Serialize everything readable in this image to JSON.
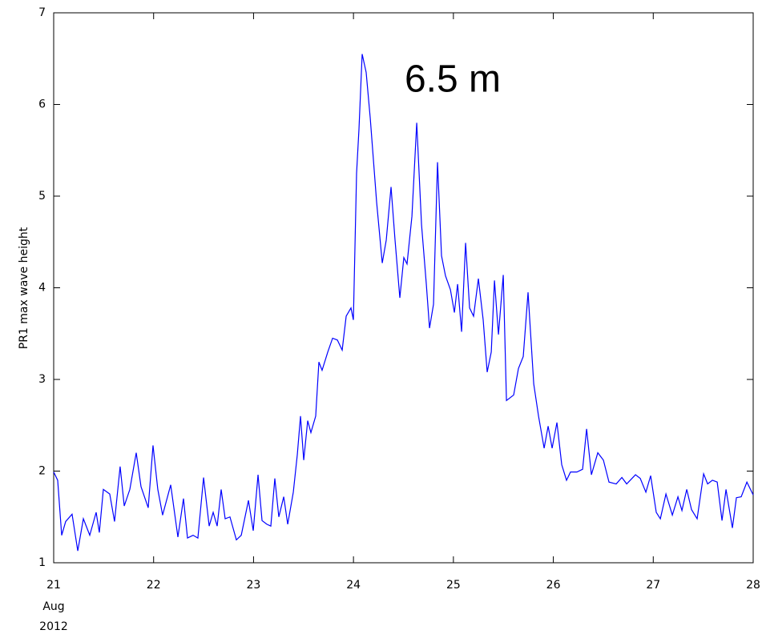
{
  "chart_data": {
    "type": "line",
    "ylabel": "PR1 max wave height",
    "annotation": "6.5 m",
    "x_date_label": [
      "Aug",
      "2012"
    ],
    "xlim": [
      21,
      28
    ],
    "ylim": [
      1,
      7
    ],
    "xticks": [
      21,
      22,
      23,
      24,
      25,
      26,
      27,
      28
    ],
    "yticks": [
      1,
      2,
      3,
      4,
      5,
      6,
      7
    ],
    "grid": false,
    "x": [
      21.0,
      21.04,
      21.08,
      21.12,
      21.184,
      21.241,
      21.297,
      21.361,
      21.425,
      21.457,
      21.497,
      21.561,
      21.609,
      21.665,
      21.706,
      21.762,
      21.826,
      21.874,
      21.946,
      21.994,
      22.042,
      22.09,
      22.171,
      22.243,
      22.299,
      22.339,
      22.395,
      22.443,
      22.5,
      22.556,
      22.596,
      22.636,
      22.676,
      22.716,
      22.764,
      22.828,
      22.877,
      22.949,
      22.997,
      23.045,
      23.085,
      23.133,
      23.173,
      23.213,
      23.253,
      23.302,
      23.342,
      23.398,
      23.438,
      23.47,
      23.502,
      23.542,
      23.574,
      23.622,
      23.654,
      23.686,
      23.743,
      23.791,
      23.839,
      23.887,
      23.927,
      23.975,
      23.999,
      24.031,
      24.055,
      24.087,
      24.127,
      24.168,
      24.232,
      24.288,
      24.328,
      24.376,
      24.416,
      24.464,
      24.504,
      24.536,
      24.585,
      24.633,
      24.681,
      24.729,
      24.761,
      24.801,
      24.841,
      24.881,
      24.921,
      24.97,
      25.01,
      25.042,
      25.082,
      25.122,
      25.162,
      25.202,
      25.25,
      25.298,
      25.338,
      25.379,
      25.411,
      25.451,
      25.499,
      25.531,
      25.603,
      25.651,
      25.699,
      25.747,
      25.804,
      25.852,
      25.908,
      25.948,
      25.988,
      26.036,
      26.084,
      26.132,
      26.172,
      26.236,
      26.293,
      26.333,
      26.381,
      26.445,
      26.501,
      26.557,
      26.629,
      26.686,
      26.734,
      26.822,
      26.87,
      26.926,
      26.974,
      27.03,
      27.071,
      27.127,
      27.191,
      27.247,
      27.287,
      27.335,
      27.383,
      27.439,
      27.504,
      27.544,
      27.592,
      27.64,
      27.688,
      27.728,
      27.792,
      27.832,
      27.88,
      27.937,
      28.0
    ],
    "series": [
      {
        "color": "#0000ff",
        "values": [
          1.99,
          1.9,
          1.3,
          1.45,
          1.53,
          1.13,
          1.48,
          1.3,
          1.55,
          1.33,
          1.8,
          1.75,
          1.45,
          2.05,
          1.62,
          1.8,
          2.2,
          1.83,
          1.6,
          2.28,
          1.8,
          1.52,
          1.85,
          1.28,
          1.7,
          1.27,
          1.3,
          1.27,
          1.93,
          1.4,
          1.55,
          1.4,
          1.8,
          1.48,
          1.5,
          1.25,
          1.3,
          1.68,
          1.35,
          1.96,
          1.46,
          1.42,
          1.4,
          1.92,
          1.5,
          1.72,
          1.42,
          1.77,
          2.18,
          2.6,
          2.12,
          2.55,
          2.42,
          2.6,
          3.19,
          3.1,
          3.3,
          3.45,
          3.43,
          3.32,
          3.69,
          3.78,
          3.65,
          5.25,
          5.73,
          6.55,
          6.35,
          5.85,
          4.93,
          4.27,
          4.52,
          5.1,
          4.52,
          3.89,
          4.33,
          4.26,
          4.78,
          5.8,
          4.69,
          4.04,
          3.56,
          3.82,
          5.37,
          4.35,
          4.13,
          3.98,
          3.73,
          4.04,
          3.52,
          4.49,
          3.78,
          3.69,
          4.1,
          3.65,
          3.08,
          3.3,
          4.08,
          3.49,
          4.14,
          2.77,
          2.83,
          3.12,
          3.25,
          3.95,
          2.95,
          2.6,
          2.25,
          2.49,
          2.25,
          2.53,
          2.07,
          1.9,
          1.99,
          1.99,
          2.02,
          2.46,
          1.96,
          2.2,
          2.12,
          1.88,
          1.86,
          1.93,
          1.86,
          1.96,
          1.92,
          1.77,
          1.95,
          1.55,
          1.48,
          1.75,
          1.52,
          1.72,
          1.57,
          1.8,
          1.58,
          1.48,
          1.97,
          1.86,
          1.9,
          1.88,
          1.46,
          1.8,
          1.38,
          1.71,
          1.72,
          1.88,
          1.74
        ]
      }
    ]
  }
}
